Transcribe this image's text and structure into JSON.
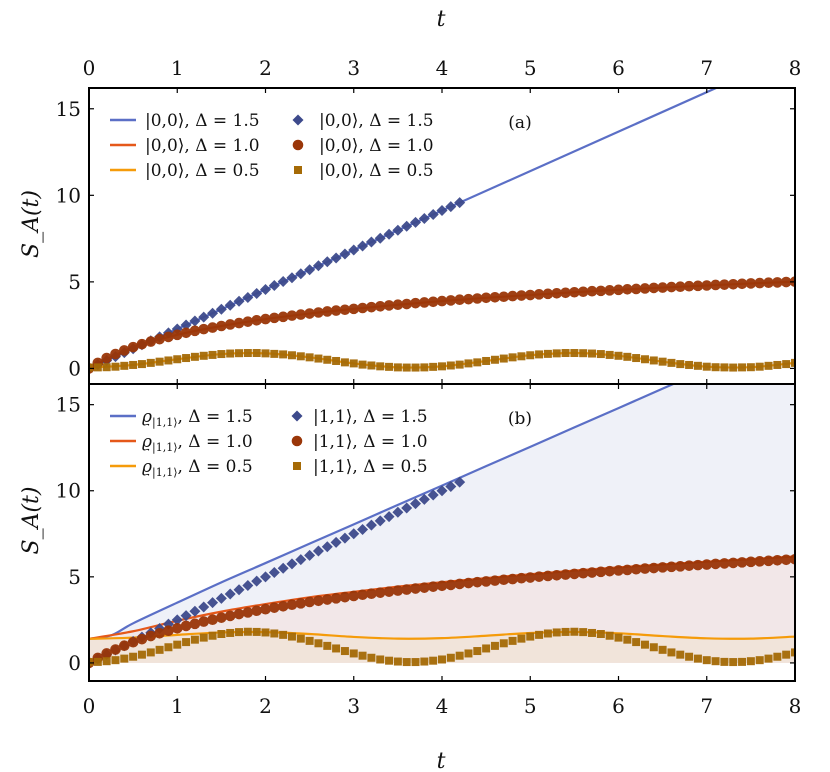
{
  "chart_data": [
    {
      "panel_label": "(a)",
      "type": "line+scatter",
      "xlabel": "t",
      "ylabel": "S_A(t)",
      "xlim": [
        0,
        8
      ],
      "ylim": [
        -0.9,
        16.2
      ],
      "xticks": [
        "0",
        "1",
        "2",
        "3",
        "4",
        "5",
        "6",
        "7",
        "8"
      ],
      "yticks": [
        "0",
        "5",
        "10",
        "15"
      ],
      "grid": false,
      "legend_position": "top-left",
      "lines": [
        {
          "legend": "|0,0⟩,  Δ = 1.5",
          "color": "#5b6fc6",
          "x": [
            0,
            8
          ],
          "y": [
            0,
            18.24
          ]
        },
        {
          "legend": "|0,0⟩,  Δ = 1.0",
          "color": "#e5581a",
          "x": [
            0,
            0.5,
            1,
            1.5,
            2,
            2.5,
            3,
            3.5,
            4,
            4.5,
            5,
            5.5,
            6,
            6.5,
            7,
            7.5,
            8
          ],
          "y": [
            0,
            1.23,
            1.94,
            2.45,
            2.85,
            3.17,
            3.44,
            3.68,
            3.89,
            4.08,
            4.24,
            4.4,
            4.54,
            4.67,
            4.79,
            4.91,
            5.01
          ]
        },
        {
          "legend": "|0,0⟩,  Δ = 0.5",
          "color": "#f59b0a",
          "x": [
            0,
            0.5,
            1,
            1.5,
            2,
            2.5,
            3,
            3.5,
            4,
            4.5,
            5,
            5.5,
            6,
            6.5,
            7,
            7.5,
            8
          ],
          "y": [
            0.05,
            0.2,
            0.53,
            0.83,
            0.87,
            0.64,
            0.29,
            0.06,
            0.12,
            0.43,
            0.76,
            0.89,
            0.73,
            0.39,
            0.1,
            0.07,
            0.32
          ]
        }
      ],
      "markers": [
        {
          "legend": "|0,0⟩,  Δ = 1.5",
          "shape": "diamond",
          "color": "#3d4a8c",
          "x_start": 0,
          "x_step": 0.1,
          "y": [
            0,
            0.23,
            0.46,
            0.68,
            0.91,
            1.14,
            1.37,
            1.6,
            1.82,
            2.05,
            2.28,
            2.51,
            2.74,
            2.96,
            3.19,
            3.42,
            3.65,
            3.88,
            4.1,
            4.33,
            4.56,
            4.79,
            5.02,
            5.24,
            5.47,
            5.7,
            5.93,
            6.16,
            6.38,
            6.61,
            6.84,
            7.07,
            7.3,
            7.52,
            7.75,
            7.98,
            8.21,
            8.44,
            8.66,
            8.89,
            9.12,
            9.35,
            9.58
          ]
        },
        {
          "legend": "|0,0⟩,  Δ = 1.0",
          "shape": "circle",
          "color": "#9a3608",
          "x_start": 0,
          "x_step": 0.1,
          "y": [
            0,
            0.32,
            0.6,
            0.83,
            1.04,
            1.23,
            1.4,
            1.55,
            1.69,
            1.82,
            1.94,
            2.06,
            2.17,
            2.27,
            2.36,
            2.45,
            2.54,
            2.62,
            2.7,
            2.78,
            2.85,
            2.92,
            2.98,
            3.05,
            3.11,
            3.17,
            3.23,
            3.29,
            3.34,
            3.39,
            3.44,
            3.49,
            3.54,
            3.59,
            3.64,
            3.68,
            3.72,
            3.77,
            3.81,
            3.85,
            3.89,
            3.93,
            3.97,
            4.0,
            4.04,
            4.08,
            4.11,
            4.14,
            4.18,
            4.21,
            4.24,
            4.28,
            4.31,
            4.34,
            4.37,
            4.4,
            4.43,
            4.46,
            4.48,
            4.51,
            4.54,
            4.57,
            4.59,
            4.62,
            4.65,
            4.67,
            4.7,
            4.72,
            4.75,
            4.77,
            4.79,
            4.82,
            4.84,
            4.86,
            4.89,
            4.91,
            4.93,
            4.95,
            4.97,
            4.99,
            5.01
          ]
        },
        {
          "legend": "|0,0⟩,  Δ = 0.5",
          "shape": "square",
          "color": "#a56a06",
          "x_start": 0,
          "x_step": 0.1,
          "y": [
            0.05,
            0.06,
            0.07,
            0.1,
            0.15,
            0.2,
            0.25,
            0.32,
            0.39,
            0.46,
            0.53,
            0.6,
            0.67,
            0.73,
            0.78,
            0.83,
            0.86,
            0.88,
            0.89,
            0.89,
            0.87,
            0.84,
            0.81,
            0.76,
            0.7,
            0.64,
            0.57,
            0.5,
            0.43,
            0.35,
            0.29,
            0.22,
            0.17,
            0.12,
            0.09,
            0.06,
            0.05,
            0.05,
            0.06,
            0.09,
            0.12,
            0.17,
            0.22,
            0.29,
            0.35,
            0.43,
            0.5,
            0.57,
            0.64,
            0.7,
            0.76,
            0.81,
            0.84,
            0.87,
            0.89,
            0.89,
            0.88,
            0.86,
            0.83,
            0.78,
            0.73,
            0.67,
            0.6,
            0.53,
            0.46,
            0.39,
            0.32,
            0.25,
            0.2,
            0.15,
            0.1,
            0.07,
            0.06,
            0.05,
            0.06,
            0.07,
            0.1,
            0.15,
            0.2,
            0.25,
            0.32
          ]
        }
      ]
    },
    {
      "panel_label": "(b)",
      "type": "line+scatter",
      "xlabel": "t",
      "ylabel": "S_A(t)",
      "xlim": [
        0,
        8
      ],
      "ylim": [
        -1.05,
        16.2
      ],
      "xticks": [
        "0",
        "1",
        "2",
        "3",
        "4",
        "5",
        "6",
        "7",
        "8"
      ],
      "yticks": [
        "0",
        "5",
        "10",
        "15"
      ],
      "grid": false,
      "legend_position": "top-left",
      "shaded_below_lines": true,
      "lines": [
        {
          "legend_symbol": "ϱ",
          "legend_sub": "|1,1⟩",
          "legend_rest": ", Δ = 1.5",
          "color": "#5b6fc6",
          "fill": "#eff1f8",
          "x": [
            0,
            0.25,
            0.5,
            1,
            1.5,
            2,
            2.5,
            3,
            3.5,
            4,
            4.5,
            5,
            5.5,
            6,
            6.5,
            7,
            7.5,
            8
          ],
          "y": [
            1.4,
            1.6,
            2.3,
            3.5,
            4.68,
            5.8,
            6.93,
            8.05,
            9.18,
            10.3,
            11.43,
            12.55,
            13.68,
            14.8,
            15.93,
            17.05,
            18.18,
            19.3
          ]
        },
        {
          "legend_symbol": "ϱ",
          "legend_sub": "|1,1⟩",
          "legend_rest": ", Δ = 1.0",
          "color": "#e5581a",
          "fill": "#f2e7e8",
          "x": [
            0,
            0.5,
            1,
            1.5,
            2,
            2.5,
            3,
            3.5,
            4,
            4.5,
            5,
            5.5,
            6,
            6.5,
            7,
            7.5,
            8
          ],
          "y": [
            1.4,
            1.84,
            2.45,
            2.98,
            3.42,
            3.81,
            4.13,
            4.43,
            4.69,
            4.93,
            5.15,
            5.36,
            5.55,
            5.72,
            5.88,
            6.03,
            6.18
          ]
        },
        {
          "legend_symbol": "ϱ",
          "legend_sub": "|1,1⟩",
          "legend_rest": ", Δ = 0.5",
          "color": "#f59b0a",
          "fill": "#f1e4da",
          "x": [
            0,
            0.5,
            1,
            1.5,
            2,
            2.5,
            3,
            3.5,
            4,
            4.5,
            5,
            5.5,
            6,
            6.5,
            7,
            7.5,
            8
          ],
          "y": [
            1.4,
            1.47,
            1.63,
            1.77,
            1.79,
            1.68,
            1.51,
            1.41,
            1.44,
            1.58,
            1.74,
            1.8,
            1.72,
            1.56,
            1.43,
            1.41,
            1.53
          ]
        }
      ],
      "markers": [
        {
          "legend": "|1,1⟩, Δ = 1.5",
          "shape": "diamond",
          "color": "#3d4a8c",
          "x_start": 0,
          "x_step": 0.1,
          "y": [
            0,
            0.25,
            0.5,
            0.75,
            1.0,
            1.25,
            1.5,
            1.75,
            2.0,
            2.25,
            2.5,
            2.75,
            3.0,
            3.25,
            3.5,
            3.75,
            4.0,
            4.25,
            4.5,
            4.75,
            5.0,
            5.25,
            5.5,
            5.75,
            6.0,
            6.25,
            6.5,
            6.75,
            7.0,
            7.25,
            7.5,
            7.75,
            8.0,
            8.25,
            8.5,
            8.75,
            9.0,
            9.25,
            9.5,
            9.75,
            10.0,
            10.25,
            10.5
          ]
        },
        {
          "legend": "|1,1⟩, Δ = 1.0",
          "shape": "circle",
          "color": "#9a3608",
          "x_start": 0,
          "x_step": 0.1,
          "y": [
            0,
            0.29,
            0.55,
            0.78,
            1.0,
            1.2,
            1.38,
            1.56,
            1.72,
            1.87,
            2.01,
            2.15,
            2.27,
            2.4,
            2.51,
            2.63,
            2.73,
            2.84,
            2.93,
            3.03,
            3.12,
            3.21,
            3.29,
            3.38,
            3.46,
            3.54,
            3.61,
            3.68,
            3.75,
            3.82,
            3.89,
            3.96,
            4.02,
            4.08,
            4.14,
            4.2,
            4.26,
            4.32,
            4.37,
            4.43,
            4.48,
            4.53,
            4.59,
            4.64,
            4.69,
            4.73,
            4.78,
            4.83,
            4.87,
            4.92,
            4.96,
            5.01,
            5.05,
            5.09,
            5.13,
            5.17,
            5.21,
            5.25,
            5.29,
            5.33,
            5.37,
            5.4,
            5.44,
            5.48,
            5.51,
            5.55,
            5.58,
            5.61,
            5.65,
            5.68,
            5.71,
            5.75,
            5.78,
            5.81,
            5.84,
            5.87,
            5.9,
            5.93,
            5.96,
            5.99,
            6.02
          ]
        },
        {
          "legend": "|1,1⟩, Δ = 0.5",
          "shape": "square",
          "color": "#a56a06",
          "x_start": 0,
          "x_step": 0.1,
          "y": [
            0.05,
            0.06,
            0.1,
            0.16,
            0.25,
            0.36,
            0.48,
            0.61,
            0.76,
            0.91,
            1.06,
            1.21,
            1.35,
            1.47,
            1.58,
            1.68,
            1.74,
            1.79,
            1.81,
            1.8,
            1.77,
            1.71,
            1.63,
            1.53,
            1.41,
            1.28,
            1.14,
            0.99,
            0.84,
            0.69,
            0.55,
            0.42,
            0.3,
            0.2,
            0.13,
            0.08,
            0.05,
            0.05,
            0.08,
            0.13,
            0.2,
            0.3,
            0.42,
            0.55,
            0.69,
            0.84,
            0.99,
            1.14,
            1.28,
            1.41,
            1.53,
            1.63,
            1.71,
            1.77,
            1.8,
            1.81,
            1.79,
            1.74,
            1.68,
            1.58,
            1.47,
            1.35,
            1.21,
            1.06,
            0.91,
            0.76,
            0.61,
            0.48,
            0.36,
            0.25,
            0.16,
            0.1,
            0.06,
            0.05,
            0.06,
            0.1,
            0.16,
            0.25,
            0.36,
            0.48,
            0.61
          ]
        }
      ]
    }
  ]
}
